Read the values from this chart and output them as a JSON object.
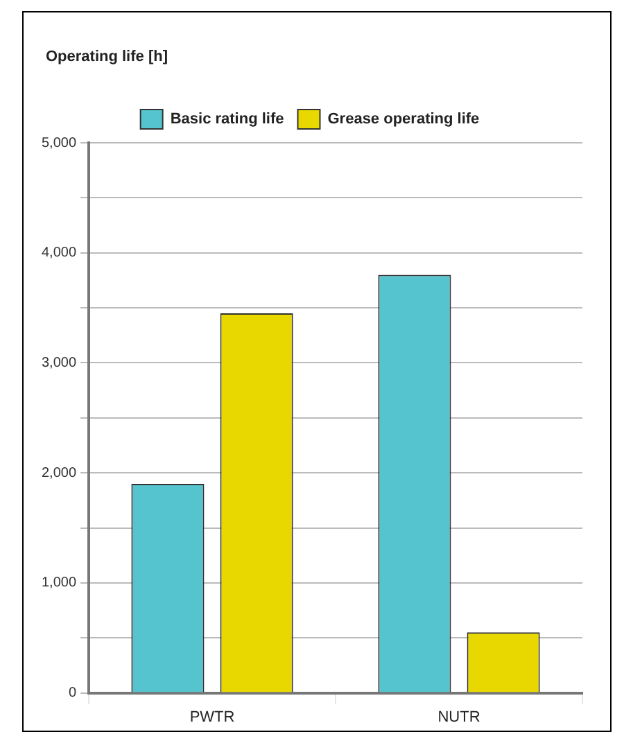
{
  "chart_data": {
    "type": "bar",
    "ylabel": "Operating life [h]",
    "categories": [
      "PWTR",
      "NUTR"
    ],
    "series": [
      {
        "name": "Basic rating life",
        "color": "#56c4cf",
        "values": [
          1900,
          3800
        ]
      },
      {
        "name": "Grease operating life",
        "color": "#e8d800",
        "values": [
          3450,
          550
        ]
      }
    ],
    "ylim": [
      0,
      5000
    ],
    "yticks": [
      0,
      {
        "value": 500,
        "label": null
      },
      {
        "value": 1000,
        "label": "1,000"
      },
      {
        "value": 1500,
        "label": null
      },
      {
        "value": 2000,
        "label": "2,000"
      },
      {
        "value": 2500,
        "label": null
      },
      {
        "value": 3000,
        "label": "3,000"
      },
      {
        "value": 3500,
        "label": null
      },
      {
        "value": 4000,
        "label": "4,000"
      },
      {
        "value": 4500,
        "label": null
      },
      {
        "value": 5000,
        "label": "5,000"
      }
    ],
    "grid": true,
    "legend": "top"
  }
}
